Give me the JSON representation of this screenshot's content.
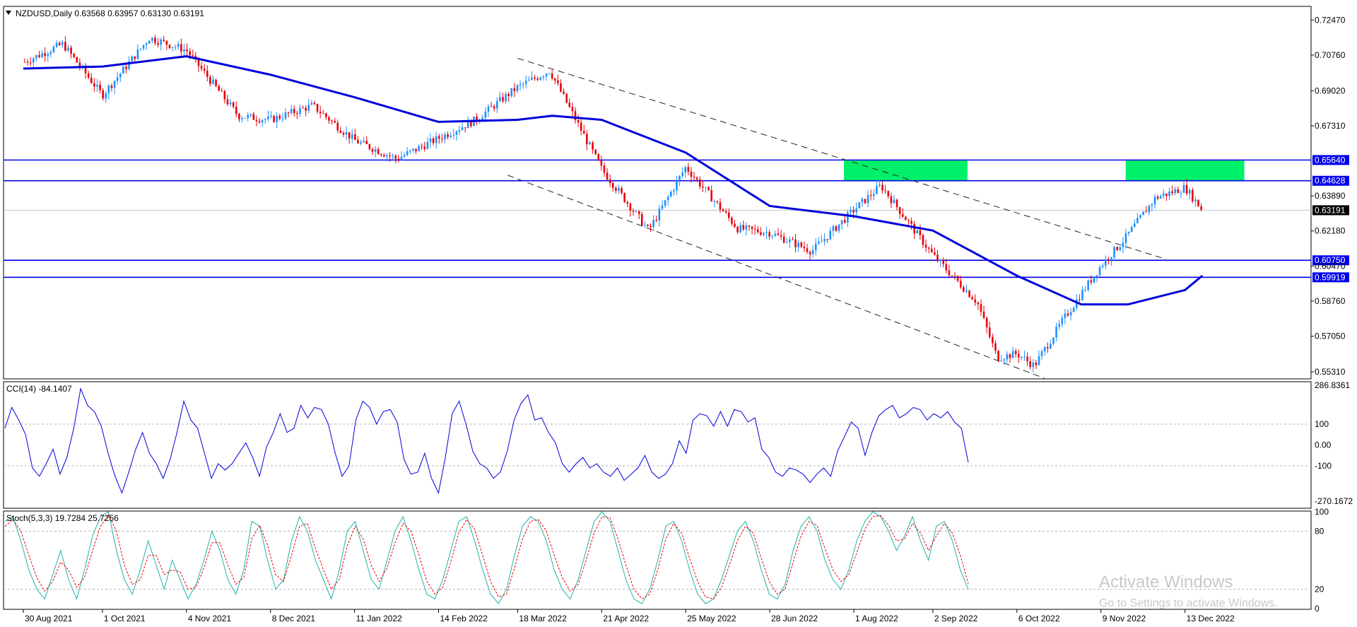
{
  "header": {
    "symbol": "NZDUSD,Daily",
    "ohlc": "0.63568 0.63957 0.63130 0.63191"
  },
  "colors": {
    "bull": "#1e90ff",
    "bear": "#e8000b",
    "ma": "#0000dd",
    "level": "#0000ee",
    "zone": "#00f06a",
    "cci": "#0000dd",
    "stoch_main": "#20b2aa",
    "stoch_signal": "#ee0000"
  },
  "chart_data": [
    {
      "type": "candlestick",
      "title": "NZDUSD,Daily",
      "price_axis": [
        "0.72470",
        "0.70760",
        "0.69020",
        "0.67310",
        "0.63890",
        "0.62180",
        "0.60470",
        "0.58760",
        "0.57050",
        "0.55310"
      ],
      "date_axis": [
        "30 Aug 2021",
        "1 Oct 2021",
        "4 Nov 2021",
        "8 Dec 2021",
        "11 Jan 2022",
        "14 Feb 2022",
        "18 Mar 2022",
        "21 Apr 2022",
        "25 May 2022",
        "28 Jun 2022",
        "1 Aug 2022",
        "2 Sep 2022",
        "6 Oct 2022",
        "9 Nov 2022",
        "13 Dec 2022"
      ],
      "ylim": [
        0.55,
        0.731
      ],
      "levels": [
        0.6564,
        0.64628,
        0.6075,
        0.59919
      ],
      "current_price": "0.63191",
      "price_path": [
        [
          "30 Aug 2021",
          0.704
        ],
        [
          "15 Sep 2021",
          0.713
        ],
        [
          "1 Oct 2021",
          0.688
        ],
        [
          "20 Oct 2021",
          0.716
        ],
        [
          "4 Nov 2021",
          0.71
        ],
        [
          "25 Nov 2021",
          0.678
        ],
        [
          "8 Dec 2021",
          0.676
        ],
        [
          "25 Dec 2021",
          0.683
        ],
        [
          "11 Jan 2022",
          0.666
        ],
        [
          "28 Jan 2022",
          0.657
        ],
        [
          "14 Feb 2022",
          0.667
        ],
        [
          "1 Mar 2022",
          0.676
        ],
        [
          "18 Mar 2022",
          0.692
        ],
        [
          "31 Mar 2022",
          0.7
        ],
        [
          "21 Apr 2022",
          0.652
        ],
        [
          "10 May 2022",
          0.622
        ],
        [
          "25 May 2022",
          0.653
        ],
        [
          "15 Jun 2022",
          0.623
        ],
        [
          "28 Jun 2022",
          0.621
        ],
        [
          "15 Jul 2022",
          0.612
        ],
        [
          "1 Aug 2022",
          0.632
        ],
        [
          "12 Aug 2022",
          0.644
        ],
        [
          "2 Sep 2022",
          0.61
        ],
        [
          "20 Sep 2022",
          0.587
        ],
        [
          "28 Sep 2022",
          0.56
        ],
        [
          "6 Oct 2022",
          0.562
        ],
        [
          "13 Oct 2022",
          0.556
        ],
        [
          "25 Oct 2022",
          0.579
        ],
        [
          "9 Nov 2022",
          0.605
        ],
        [
          "18 Nov 2022",
          0.617
        ],
        [
          "1 Dec 2022",
          0.638
        ],
        [
          "13 Dec 2022",
          0.643
        ],
        [
          "20 Dec 2022",
          0.632
        ]
      ],
      "moving_average": [
        [
          "30 Aug 2021",
          0.701
        ],
        [
          "1 Oct 2021",
          0.702
        ],
        [
          "4 Nov 2021",
          0.707
        ],
        [
          "8 Dec 2021",
          0.698
        ],
        [
          "11 Jan 2022",
          0.687
        ],
        [
          "14 Feb 2022",
          0.675
        ],
        [
          "18 Mar 2022",
          0.676
        ],
        [
          "1 Apr 2022",
          0.678
        ],
        [
          "21 Apr 2022",
          0.676
        ],
        [
          "25 May 2022",
          0.66
        ],
        [
          "28 Jun 2022",
          0.634
        ],
        [
          "1 Aug 2022",
          0.629
        ],
        [
          "2 Sep 2022",
          0.622
        ],
        [
          "6 Oct 2022",
          0.6
        ],
        [
          "1 Nov 2022",
          0.586
        ],
        [
          "20 Nov 2022",
          0.586
        ],
        [
          "13 Dec 2022",
          0.593
        ],
        [
          "20 Dec 2022",
          0.6
        ]
      ],
      "channel": [
        {
          "from": [
            "18 Mar 2022",
            0.706
          ],
          "to": [
            "15 Aug 2022",
            0.65
          ]
        },
        {
          "from": [
            "14 Mar 2022",
            0.649
          ],
          "to": [
            "17 Oct 2022",
            0.55
          ]
        }
      ],
      "zones": [
        {
          "from": "28 Jul 2022",
          "to": "16 Sep 2022",
          "low": 0.64628,
          "high": 0.6564
        },
        {
          "from": "19 Nov 2022",
          "to": "6 Jan 2023",
          "low": 0.64628,
          "high": 0.6564
        }
      ]
    },
    {
      "type": "line",
      "title": "CCI(14) -84.1407",
      "y_axis": [
        "286.8361",
        "100",
        "0.00",
        "-100",
        "-270.1672"
      ],
      "ylim": [
        -300,
        300
      ],
      "levels": [
        100,
        -100
      ],
      "series": [
        {
          "values": [
            80,
            180,
            120,
            50,
            -110,
            -150,
            -90,
            -20,
            -140,
            -60,
            80,
            270,
            190,
            160,
            90,
            -40,
            -150,
            -230,
            -130,
            -20,
            60,
            -40,
            -90,
            -160,
            -70,
            60,
            210,
            120,
            80,
            -40,
            -160,
            -90,
            -120,
            -90,
            -40,
            10,
            -60,
            -150,
            -10,
            60,
            150,
            60,
            80,
            190,
            130,
            180,
            170,
            100,
            -40,
            -150,
            -100,
            120,
            210,
            180,
            100,
            160,
            170,
            110,
            -70,
            -140,
            -130,
            -40,
            -160,
            -230,
            -60,
            150,
            210,
            100,
            -30,
            -90,
            -110,
            -160,
            -130,
            -30,
            120,
            200,
            240,
            120,
            130,
            60,
            10,
            -90,
            -130,
            -90,
            -60,
            -110,
            -90,
            -130,
            -150,
            -110,
            -170,
            -140,
            -110,
            -50,
            -130,
            -160,
            -140,
            -90,
            20,
            -40,
            120,
            150,
            140,
            90,
            160,
            90,
            170,
            160,
            110,
            130,
            -20,
            -60,
            -130,
            -150,
            -110,
            -120,
            -140,
            -180,
            -140,
            -110,
            -150,
            -30,
            40,
            110,
            80,
            -50,
            60,
            140,
            170,
            190,
            130,
            150,
            180,
            170,
            120,
            150,
            130,
            160,
            110,
            80,
            -84
          ]
        }
      ]
    },
    {
      "type": "line",
      "title": "Stoch(5,3,3) 19.7284 25.7256",
      "y_axis": [
        "100",
        "80",
        "20",
        "0"
      ],
      "ylim": [
        0,
        100
      ],
      "levels": [
        80,
        20
      ],
      "series": [
        {
          "values": [
            90,
            95,
            70,
            40,
            20,
            10,
            35,
            60,
            30,
            10,
            40,
            75,
            95,
            100,
            60,
            30,
            15,
            40,
            70,
            45,
            20,
            50,
            30,
            10,
            25,
            50,
            80,
            60,
            30,
            15,
            40,
            90,
            85,
            50,
            20,
            30,
            70,
            95,
            80,
            50,
            30,
            10,
            40,
            80,
            90,
            60,
            30,
            20,
            50,
            80,
            95,
            70,
            40,
            15,
            10,
            30,
            60,
            90,
            95,
            70,
            40,
            15,
            5,
            20,
            55,
            85,
            95,
            90,
            70,
            40,
            20,
            10,
            30,
            60,
            90,
            100,
            90,
            60,
            30,
            10,
            5,
            20,
            50,
            85,
            90,
            70,
            40,
            15,
            5,
            10,
            30,
            55,
            80,
            90,
            70,
            40,
            15,
            10,
            25,
            60,
            85,
            95,
            80,
            50,
            30,
            20,
            40,
            70,
            90,
            100,
            95,
            80,
            60,
            75,
            95,
            70,
            50,
            85,
            90,
            70,
            40,
            20
          ]
        },
        {
          "values": [
            85,
            92,
            80,
            55,
            32,
            18,
            28,
            48,
            40,
            22,
            32,
            60,
            85,
            97,
            80,
            45,
            25,
            30,
            55,
            55,
            35,
            40,
            38,
            20,
            22,
            42,
            68,
            68,
            45,
            25,
            32,
            72,
            86,
            65,
            35,
            28,
            55,
            85,
            88,
            62,
            40,
            20,
            30,
            65,
            85,
            72,
            45,
            28,
            42,
            68,
            88,
            80,
            55,
            28,
            15,
            22,
            48,
            78,
            92,
            82,
            55,
            28,
            12,
            15,
            42,
            72,
            90,
            92,
            80,
            55,
            32,
            18,
            25,
            50,
            78,
            95,
            94,
            72,
            45,
            20,
            10,
            15,
            40,
            72,
            88,
            78,
            52,
            28,
            12,
            10,
            22,
            45,
            70,
            85,
            78,
            52,
            28,
            15,
            20,
            48,
            75,
            90,
            86,
            62,
            40,
            28,
            35,
            58,
            82,
            95,
            96,
            86,
            70,
            72,
            88,
            78,
            60,
            75,
            88,
            78,
            55,
            25.7
          ]
        }
      ]
    }
  ],
  "watermark": {
    "line1": "Activate Windows",
    "line2": "Go to Settings to activate Windows."
  }
}
